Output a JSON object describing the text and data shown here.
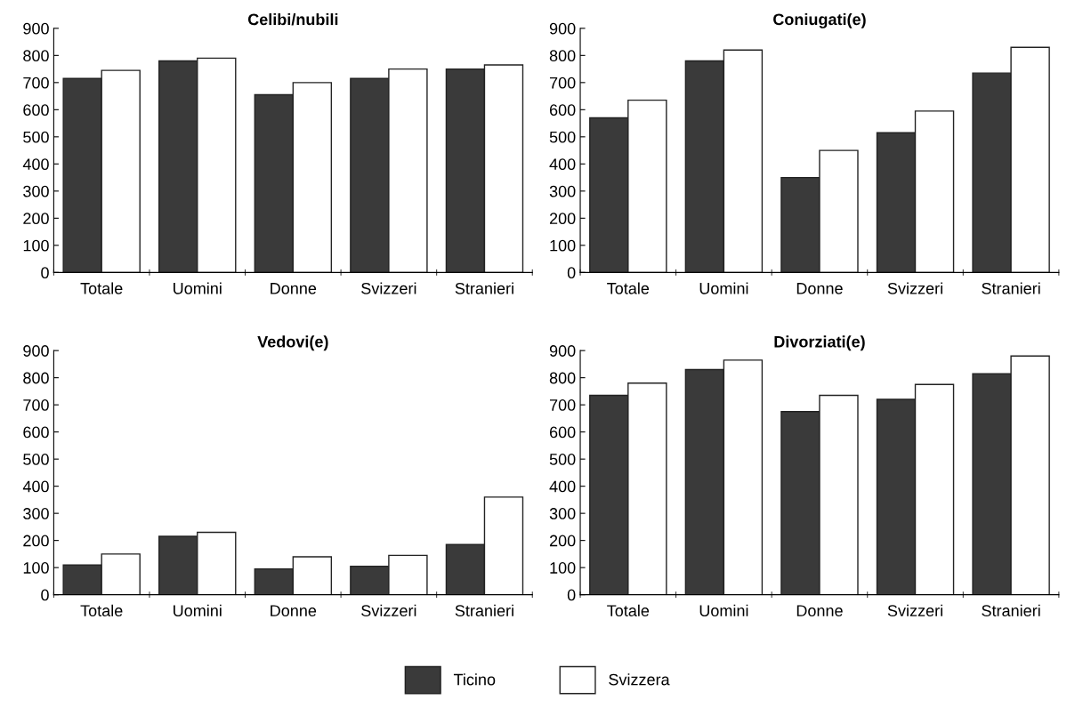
{
  "chart_data": [
    {
      "type": "bar",
      "title": "Celibi/nubili",
      "categories": [
        "Totale",
        "Uomini",
        "Donne",
        "Svizzeri",
        "Stranieri"
      ],
      "ylim": [
        0,
        900
      ],
      "yticks": [
        0,
        100,
        200,
        300,
        400,
        500,
        600,
        700,
        800,
        900
      ],
      "grid": false,
      "legend": "bottom",
      "series": [
        {
          "name": "Ticino",
          "color": "#3a3a3a",
          "values": [
            715,
            780,
            655,
            715,
            750
          ]
        },
        {
          "name": "Svizzera",
          "color": "#ffffff",
          "values": [
            745,
            790,
            700,
            750,
            765
          ]
        }
      ]
    },
    {
      "type": "bar",
      "title": "Coniugati(e)",
      "categories": [
        "Totale",
        "Uomini",
        "Donne",
        "Svizzeri",
        "Stranieri"
      ],
      "ylim": [
        0,
        900
      ],
      "yticks": [
        0,
        100,
        200,
        300,
        400,
        500,
        600,
        700,
        800,
        900
      ],
      "grid": false,
      "series": [
        {
          "color": "#3a3a3a",
          "values": [
            570,
            780,
            350,
            515,
            735
          ]
        },
        {
          "color": "#ffffff",
          "values": [
            635,
            820,
            450,
            595,
            830
          ]
        }
      ]
    },
    {
      "type": "bar",
      "title": "Vedovi(e)",
      "categories": [
        "Totale",
        "Uomini",
        "Donne",
        "Svizzeri",
        "Stranieri"
      ],
      "ylim": [
        0,
        900
      ],
      "yticks": [
        0,
        100,
        200,
        300,
        400,
        500,
        600,
        700,
        800,
        900
      ],
      "grid": false,
      "series": [
        {
          "color": "#3a3a3a",
          "values": [
            110,
            215,
            95,
            105,
            185
          ]
        },
        {
          "color": "#ffffff",
          "values": [
            150,
            230,
            140,
            145,
            360
          ]
        }
      ]
    },
    {
      "type": "bar",
      "title": "Divorziati(e)",
      "categories": [
        "Totale",
        "Uomini",
        "Donne",
        "Svizzeri",
        "Stranieri"
      ],
      "ylim": [
        0,
        900
      ],
      "yticks": [
        0,
        100,
        200,
        300,
        400,
        500,
        600,
        700,
        800,
        900
      ],
      "grid": false,
      "series": [
        {
          "color": "#3a3a3a",
          "values": [
            735,
            830,
            675,
            720,
            815
          ]
        },
        {
          "color": "#ffffff",
          "values": [
            780,
            865,
            735,
            775,
            880
          ]
        }
      ]
    }
  ]
}
